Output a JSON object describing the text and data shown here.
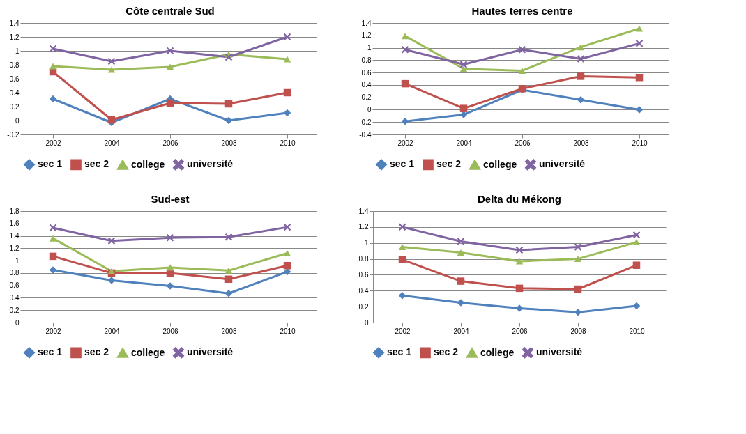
{
  "chart_data": [
    {
      "type": "line",
      "title": "Côte centrale Sud",
      "categories": [
        "2002",
        "2004",
        "2006",
        "2008",
        "2010"
      ],
      "ylim": [
        -0.2,
        1.4
      ],
      "yticks": [
        -0.2,
        0,
        0.2,
        0.4,
        0.6,
        0.8,
        1,
        1.2,
        1.4
      ],
      "grid": "y",
      "legend": "bottom",
      "series": [
        {
          "name": "sec 1",
          "color": "#4f81bd",
          "marker": "diamond",
          "values": [
            0.31,
            -0.03,
            0.31,
            0,
            0.11
          ]
        },
        {
          "name": "sec 2",
          "color": "#c0504d",
          "marker": "square",
          "values": [
            0.7,
            0.01,
            0.25,
            0.24,
            0.4
          ]
        },
        {
          "name": "college",
          "color": "#9bbb59",
          "marker": "triangle",
          "values": [
            0.78,
            0.73,
            0.77,
            0.95,
            0.88
          ]
        },
        {
          "name": "université",
          "color": "#8064a2",
          "marker": "cross",
          "values": [
            1.03,
            0.85,
            1.0,
            0.91,
            1.2
          ]
        }
      ]
    },
    {
      "type": "line",
      "title": "Hautes terres centre",
      "categories": [
        "2002",
        "2004",
        "2006",
        "2008",
        "2010"
      ],
      "ylim": [
        -0.4,
        1.4
      ],
      "yticks": [
        -0.4,
        -0.2,
        0,
        0.2,
        0.4,
        0.6,
        0.8,
        1,
        1.2,
        1.4
      ],
      "grid": "y",
      "legend": "bottom",
      "series": [
        {
          "name": "sec 1",
          "color": "#4f81bd",
          "marker": "diamond",
          "values": [
            -0.19,
            -0.08,
            0.32,
            0.16,
            0
          ]
        },
        {
          "name": "sec 2",
          "color": "#c0504d",
          "marker": "square",
          "values": [
            0.42,
            0.02,
            0.34,
            0.54,
            0.52
          ]
        },
        {
          "name": "college",
          "color": "#9bbb59",
          "marker": "triangle",
          "values": [
            1.19,
            0.66,
            0.63,
            1.01,
            1.31
          ]
        },
        {
          "name": "université",
          "color": "#8064a2",
          "marker": "cross",
          "values": [
            0.97,
            0.73,
            0.97,
            0.82,
            1.07
          ]
        }
      ]
    },
    {
      "type": "line",
      "title": "Sud-est",
      "categories": [
        "2002",
        "2004",
        "2006",
        "2008",
        "2010"
      ],
      "ylim": [
        0,
        1.8
      ],
      "yticks": [
        0,
        0.2,
        0.4,
        0.6,
        0.8,
        1,
        1.2,
        1.4,
        1.6,
        1.8
      ],
      "grid": "y",
      "legend": "bottom",
      "series": [
        {
          "name": "sec 1",
          "color": "#4f81bd",
          "marker": "diamond",
          "values": [
            0.85,
            0.68,
            0.59,
            0.47,
            0.82
          ]
        },
        {
          "name": "sec 2",
          "color": "#c0504d",
          "marker": "square",
          "values": [
            1.07,
            0.8,
            0.8,
            0.7,
            0.92
          ]
        },
        {
          "name": "college",
          "color": "#9bbb59",
          "marker": "triangle",
          "values": [
            1.36,
            0.83,
            0.89,
            0.84,
            1.12
          ]
        },
        {
          "name": "université",
          "color": "#8064a2",
          "marker": "cross",
          "values": [
            1.53,
            1.32,
            1.37,
            1.38,
            1.54
          ]
        }
      ]
    },
    {
      "type": "line",
      "title": "Delta du Mékong",
      "categories": [
        "2002",
        "2004",
        "2006",
        "2008",
        "2010"
      ],
      "ylim": [
        0,
        1.4
      ],
      "yticks": [
        0,
        0.2,
        0.4,
        0.6,
        0.8,
        1,
        1.2,
        1.4
      ],
      "grid": "y",
      "legend": "bottom",
      "series": [
        {
          "name": "sec 1",
          "color": "#4f81bd",
          "marker": "diamond",
          "values": [
            0.34,
            0.25,
            0.18,
            0.13,
            0.21
          ]
        },
        {
          "name": "sec 2",
          "color": "#c0504d",
          "marker": "square",
          "values": [
            0.79,
            0.52,
            0.43,
            0.42,
            0.72
          ]
        },
        {
          "name": "college",
          "color": "#9bbb59",
          "marker": "triangle",
          "values": [
            0.95,
            0.88,
            0.77,
            0.8,
            1.01
          ]
        },
        {
          "name": "université",
          "color": "#8064a2",
          "marker": "cross",
          "values": [
            1.2,
            1.02,
            0.91,
            0.95,
            1.1
          ]
        }
      ]
    }
  ]
}
